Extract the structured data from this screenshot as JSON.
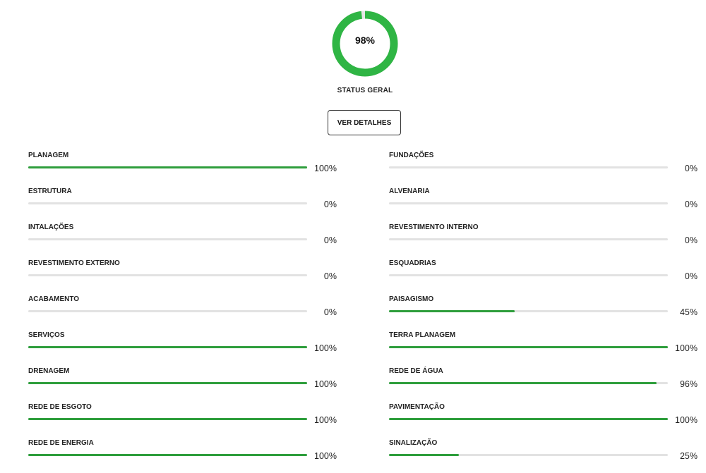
{
  "status": {
    "percent_label": "98%",
    "value": 0.98,
    "label": "STATUS GERAL",
    "ring_color": "#2fb544",
    "ring_gap_color": "#e6e6e6"
  },
  "details_button": {
    "label": "VER DETALHES"
  },
  "bar_color": "#2e9e3c",
  "track_color": "#e2e2e2",
  "left_items": [
    {
      "label": "PLANAGEM",
      "value": 100,
      "display": "100%"
    },
    {
      "label": "ESTRUTURA",
      "value": 0,
      "display": "0%"
    },
    {
      "label": "INTALAÇÕES",
      "value": 0,
      "display": "0%"
    },
    {
      "label": "REVESTIMENTO EXTERNO",
      "value": 0,
      "display": "0%"
    },
    {
      "label": "ACABAMENTO",
      "value": 0,
      "display": "0%"
    },
    {
      "label": "SERVIÇOS",
      "value": 100,
      "display": "100%"
    },
    {
      "label": "DRENAGEM",
      "value": 100,
      "display": "100%"
    },
    {
      "label": "REDE DE ESGOTO",
      "value": 100,
      "display": "100%"
    },
    {
      "label": "REDE DE ENERGIA",
      "value": 100,
      "display": "100%"
    }
  ],
  "right_items": [
    {
      "label": "FUNDAÇÕES",
      "value": 0,
      "display": "0%"
    },
    {
      "label": "ALVENARIA",
      "value": 0,
      "display": "0%"
    },
    {
      "label": "REVESTIMENTO INTERNO",
      "value": 0,
      "display": "0%"
    },
    {
      "label": "ESQUADRIAS",
      "value": 0,
      "display": "0%"
    },
    {
      "label": "PAISAGISMO",
      "value": 45,
      "display": "45%"
    },
    {
      "label": "TERRA PLANAGEM",
      "value": 100,
      "display": "100%"
    },
    {
      "label": "REDE DE ÁGUA",
      "value": 96,
      "display": "96%"
    },
    {
      "label": "PAVIMENTAÇÃO",
      "value": 100,
      "display": "100%"
    },
    {
      "label": "SINALIZAÇÃO",
      "value": 25,
      "display": "25%"
    }
  ]
}
